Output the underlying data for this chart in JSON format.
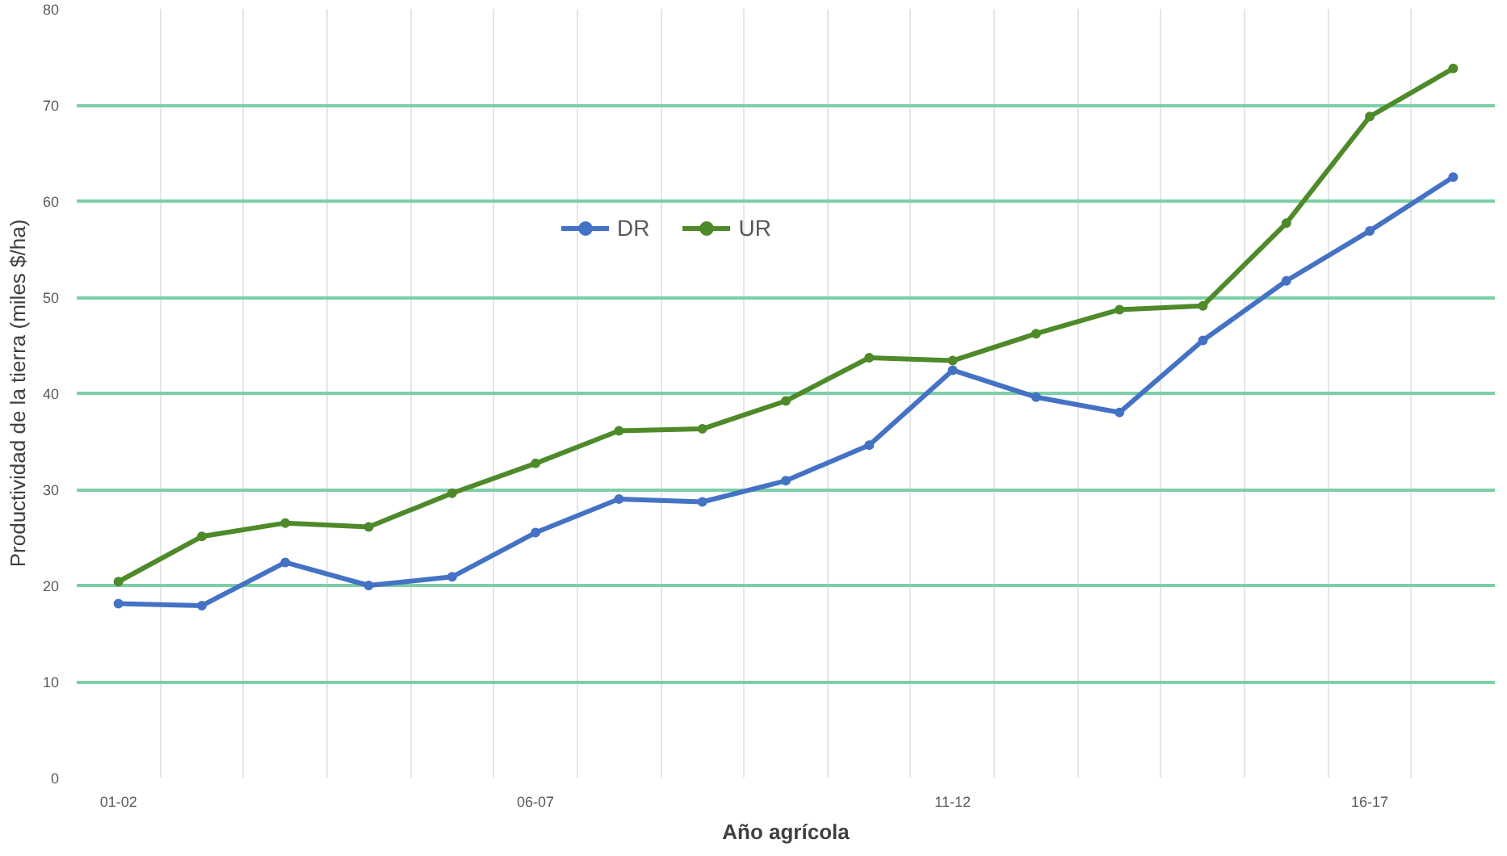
{
  "chart_data": {
    "type": "line",
    "xlabel": "Año agrícola",
    "ylabel": "Productividad de la tierra (miles $/ha)",
    "categories": [
      "01-02",
      null,
      null,
      null,
      null,
      "06-07",
      null,
      null,
      null,
      null,
      "11-12",
      null,
      null,
      null,
      null,
      "16-17",
      null
    ],
    "series": [
      {
        "name": "DR",
        "color": "#4472c4",
        "values": [
          18.1,
          17.9,
          22.4,
          20.0,
          20.9,
          25.5,
          29.0,
          28.7,
          30.9,
          34.6,
          42.4,
          39.6,
          38.0,
          45.5,
          51.7,
          56.9,
          62.5
        ]
      },
      {
        "name": "UR",
        "color": "#4e8a2a",
        "values": [
          20.4,
          25.1,
          26.5,
          26.1,
          29.6,
          32.7,
          36.1,
          36.3,
          39.2,
          43.7,
          43.4,
          46.2,
          48.7,
          49.1,
          57.7,
          68.8,
          73.8
        ]
      }
    ],
    "ylim": [
      0,
      80
    ],
    "yticks": [
      0,
      10,
      20,
      30,
      40,
      50,
      60,
      70,
      80
    ],
    "grid": true,
    "legend": "top",
    "marker": "circle",
    "line_style": "solid"
  }
}
